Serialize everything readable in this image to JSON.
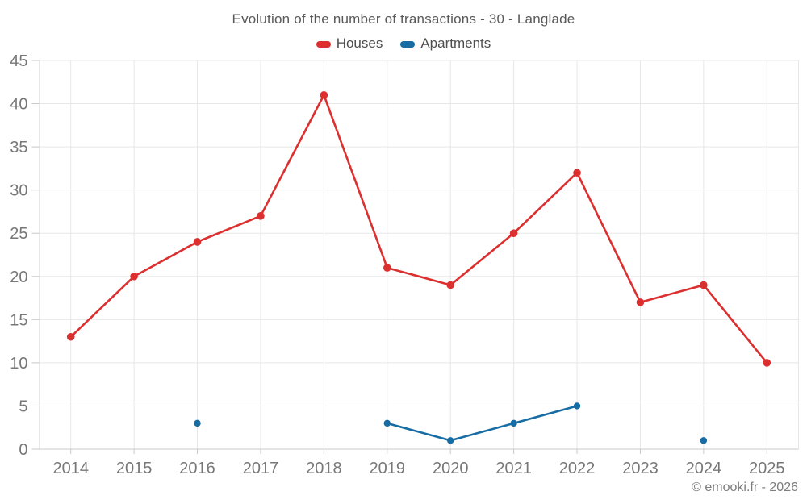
{
  "footer": {
    "credit": "© emooki.fr - 2026"
  },
  "chart_data": {
    "type": "line",
    "title": "Evolution of the number of transactions - 30 - Langlade",
    "x": [
      "2014",
      "2015",
      "2016",
      "2017",
      "2018",
      "2019",
      "2020",
      "2021",
      "2022",
      "2023",
      "2024",
      "2025"
    ],
    "series": [
      {
        "name": "Houses",
        "color": "#dc3030",
        "marker": "circle",
        "values": [
          13,
          20,
          24,
          27,
          41,
          21,
          19,
          25,
          32,
          17,
          19,
          10
        ]
      },
      {
        "name": "Apartments",
        "color": "#176da3",
        "marker": "circle",
        "values": [
          null,
          null,
          3,
          null,
          null,
          3,
          1,
          3,
          5,
          null,
          1,
          null
        ]
      }
    ],
    "ylim": [
      0,
      45
    ],
    "ytick_step": 5,
    "xlabel": "",
    "ylabel": "",
    "grid": true,
    "legend_position": "top",
    "grid_color": "#e7e7e7",
    "axis_color": "#c9c9c9",
    "tick_label_color": "#777777"
  }
}
